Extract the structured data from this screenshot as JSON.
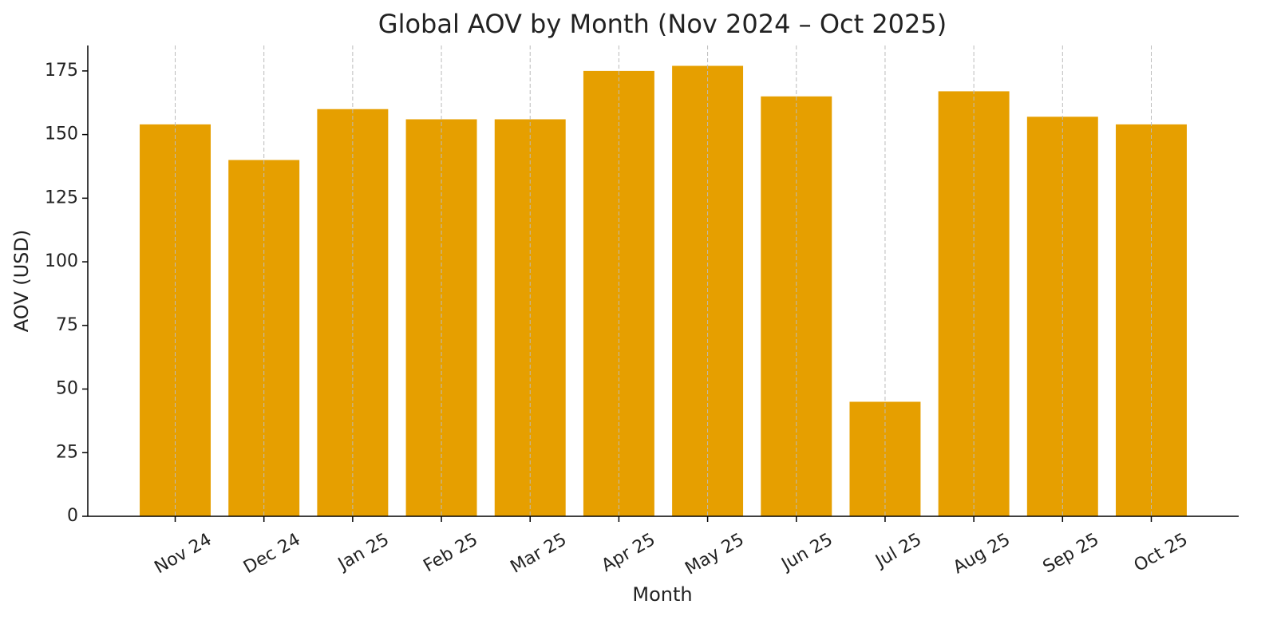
{
  "chart_data": {
    "type": "bar",
    "title": "Global AOV by Month (Nov 2024 – Oct 2025)",
    "x_label": "Month",
    "y_label": "AOV (USD)",
    "categories": [
      "Nov 24",
      "Dec 24",
      "Jan 25",
      "Feb 25",
      "Mar 25",
      "Apr 25",
      "May 25",
      "Jun 25",
      "Jul 25",
      "Aug 25",
      "Sep 25",
      "Oct 25"
    ],
    "values": [
      154,
      140,
      160,
      156,
      156,
      175,
      177,
      165,
      45,
      167,
      157,
      154
    ],
    "color": "#e69f00",
    "ylim": [
      0,
      185
    ],
    "yticks": [
      0,
      25,
      50,
      75,
      100,
      125,
      150,
      175
    ],
    "grid": true
  }
}
